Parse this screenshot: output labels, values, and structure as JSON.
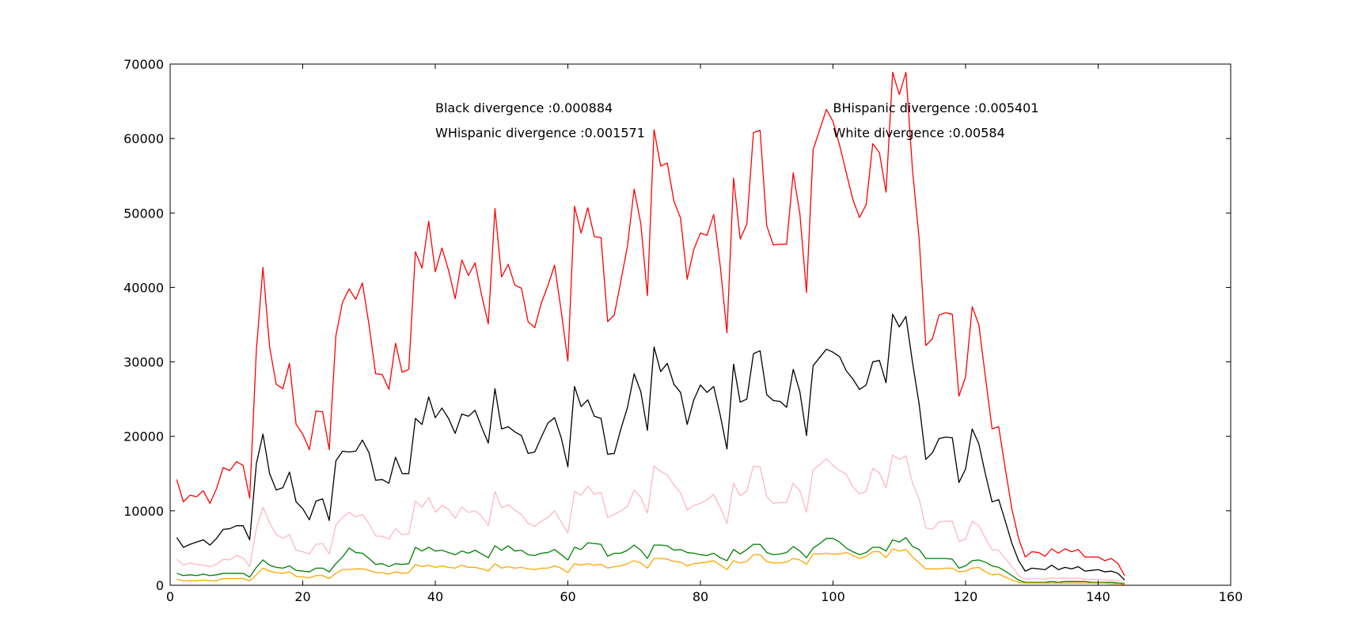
{
  "chart_data": {
    "type": "line",
    "title": "",
    "xlabel": "",
    "ylabel": "",
    "xlim": [
      0,
      160
    ],
    "ylim": [
      0,
      70000
    ],
    "xticks": [
      0,
      20,
      40,
      60,
      80,
      100,
      120,
      140,
      160
    ],
    "yticks": [
      0,
      10000,
      20000,
      30000,
      40000,
      50000,
      60000,
      70000
    ],
    "grid": false,
    "legend": "none",
    "annotations": [
      {
        "text": "Black divergence :0.000884",
        "x": 40,
        "y": 63500
      },
      {
        "text": "WHispanic divergence :0.001571",
        "x": 40,
        "y": 60200
      },
      {
        "text": "BHispanic divergence :0.005401",
        "x": 100,
        "y": 63500
      },
      {
        "text": "White divergence :0.00584",
        "x": 100,
        "y": 60200
      }
    ],
    "x": [
      1,
      2,
      3,
      4,
      5,
      6,
      7,
      8,
      9,
      10,
      11,
      12,
      13,
      14,
      15,
      16,
      17,
      18,
      19,
      20,
      21,
      22,
      23,
      24,
      25,
      26,
      27,
      28,
      29,
      30,
      31,
      32,
      33,
      34,
      35,
      36,
      37,
      38,
      39,
      40,
      41,
      42,
      43,
      44,
      45,
      46,
      47,
      48,
      49,
      50,
      51,
      52,
      53,
      54,
      55,
      56,
      57,
      58,
      59,
      60,
      61,
      62,
      63,
      64,
      65,
      66,
      67,
      68,
      69,
      70,
      71,
      72,
      73,
      74,
      75,
      76,
      77,
      78,
      79,
      80,
      81,
      82,
      83,
      84,
      85,
      86,
      87,
      88,
      89,
      90,
      91,
      92,
      93,
      94,
      95,
      96,
      97,
      98,
      99,
      100,
      101,
      102,
      103,
      104,
      105,
      106,
      107,
      108,
      109,
      110,
      111,
      112,
      113,
      114,
      115,
      116,
      117,
      118,
      119,
      120,
      121,
      122,
      123,
      124,
      125,
      126,
      127,
      128,
      129,
      130,
      131,
      132,
      133,
      134,
      135,
      136,
      137,
      138,
      139,
      140,
      141,
      142,
      143,
      144
    ],
    "series": [
      {
        "color": "#ff0000",
        "values": [
          14200,
          11200,
          12100,
          11900,
          12700,
          11000,
          13000,
          15800,
          15400,
          16600,
          16100,
          11700,
          31500,
          42700,
          32000,
          27000,
          26400,
          29800,
          21600,
          20300,
          18200,
          23400,
          23300,
          18200,
          33500,
          38000,
          39800,
          38400,
          40600,
          35000,
          28400,
          28300,
          26300,
          32500,
          28600,
          29000,
          44800,
          42600,
          48900,
          42100,
          45300,
          42300,
          38500,
          43700,
          41600,
          43300,
          38900,
          35100,
          50600,
          41400,
          43100,
          40300,
          39900,
          35400,
          34600,
          37900,
          40300,
          43000,
          36800,
          30100,
          50900,
          47300,
          50700,
          46800,
          46700,
          35400,
          36300,
          40900,
          45600,
          53200,
          48600,
          38900,
          61200,
          56300,
          56700,
          51600,
          49300,
          41100,
          45100,
          47300,
          47000,
          49800,
          42800,
          33900,
          54700,
          46500,
          48500,
          60800,
          61100,
          48300,
          45700,
          45800,
          45800,
          55400,
          49900,
          39300,
          58500,
          61200,
          63900,
          62300,
          59100,
          55400,
          51800,
          49400,
          51100,
          59300,
          58100,
          52800,
          68900,
          65900,
          68900,
          55700,
          46500,
          32200,
          33100,
          36300,
          36600,
          36400,
          25400,
          28000,
          37400,
          35000,
          27900,
          21000,
          21300,
          15600,
          10200,
          6300,
          3800,
          4500,
          4400,
          3900,
          4900,
          4300,
          4900,
          4500,
          4800,
          3800,
          3800,
          3800,
          3300,
          3600,
          2900,
          1300
        ]
      },
      {
        "color": "#000000",
        "values": [
          6400,
          5100,
          5500,
          5800,
          6100,
          5400,
          6300,
          7500,
          7600,
          8000,
          8000,
          6100,
          16300,
          20300,
          15000,
          12800,
          13100,
          15200,
          11200,
          10300,
          8800,
          11300,
          11600,
          8700,
          16700,
          18000,
          17900,
          18000,
          19500,
          17800,
          14100,
          14200,
          13700,
          17200,
          15000,
          15000,
          22400,
          21600,
          25300,
          22500,
          23800,
          22400,
          20400,
          23000,
          22700,
          23500,
          21200,
          19100,
          26400,
          21000,
          21300,
          20600,
          20100,
          17700,
          17900,
          19900,
          21800,
          22500,
          19800,
          15900,
          26700,
          24000,
          24900,
          22700,
          22400,
          17600,
          17700,
          21000,
          23900,
          28400,
          26000,
          20800,
          32000,
          28700,
          29800,
          27000,
          25900,
          21600,
          24900,
          26900,
          25900,
          26700,
          22800,
          18300,
          29700,
          24600,
          25000,
          31100,
          31500,
          25600,
          24800,
          24700,
          23900,
          29000,
          26000,
          20100,
          29500,
          30600,
          31700,
          31300,
          30700,
          28800,
          27700,
          26300,
          26900,
          30000,
          30200,
          27200,
          36400,
          34700,
          36100,
          29900,
          24300,
          16900,
          17800,
          19700,
          19900,
          19800,
          13800,
          15600,
          21000,
          19000,
          14900,
          11200,
          11500,
          8600,
          5600,
          3300,
          1900,
          2300,
          2200,
          2100,
          2700,
          2100,
          2400,
          2200,
          2500,
          1900,
          2000,
          2100,
          1800,
          1900,
          1600,
          700
        ]
      },
      {
        "color": "#ffb6c1",
        "values": [
          3500,
          2700,
          3000,
          2800,
          2700,
          2500,
          2800,
          3500,
          3400,
          4000,
          3700,
          2500,
          7600,
          10500,
          8400,
          6800,
          6300,
          6800,
          4700,
          4500,
          4200,
          5500,
          5600,
          4200,
          8100,
          9100,
          9800,
          9200,
          9500,
          8300,
          6600,
          6600,
          6200,
          7600,
          6800,
          6900,
          11300,
          10500,
          11800,
          9800,
          10700,
          10200,
          9000,
          10500,
          9800,
          10000,
          9300,
          8000,
          12600,
          10400,
          10800,
          10100,
          9500,
          8300,
          7900,
          8600,
          9100,
          10000,
          8500,
          7000,
          12600,
          12100,
          13300,
          12200,
          12500,
          9100,
          9500,
          10000,
          10600,
          12800,
          11800,
          9700,
          16000,
          15300,
          14800,
          13500,
          12400,
          10100,
          10700,
          11000,
          11500,
          12200,
          10400,
          8300,
          13700,
          12000,
          12700,
          16000,
          15900,
          11900,
          11000,
          11100,
          11100,
          13700,
          12700,
          9800,
          15500,
          16200,
          17000,
          16100,
          15400,
          14900,
          13200,
          12300,
          12600,
          15700,
          15100,
          13100,
          17500,
          16900,
          17400,
          13700,
          11600,
          7700,
          7500,
          8500,
          8600,
          8600,
          5900,
          6200,
          8600,
          8000,
          6300,
          4800,
          4700,
          3600,
          2500,
          1300,
          800,
          900,
          900,
          800,
          1000,
          900,
          1000,
          900,
          1000,
          800,
          800,
          800,
          700,
          700,
          600,
          300
        ]
      },
      {
        "color": "#008000",
        "values": [
          1600,
          1300,
          1400,
          1300,
          1500,
          1300,
          1400,
          1600,
          1600,
          1600,
          1600,
          1100,
          2400,
          3400,
          2700,
          2400,
          2300,
          2600,
          2000,
          1900,
          1800,
          2300,
          2300,
          1800,
          2900,
          3800,
          5000,
          4400,
          4300,
          3600,
          2800,
          2900,
          2500,
          2900,
          2800,
          2900,
          5100,
          4600,
          5100,
          4600,
          4700,
          4400,
          4100,
          4600,
          4300,
          4700,
          4200,
          3700,
          5300,
          4700,
          5300,
          4600,
          4700,
          4100,
          4000,
          4300,
          4400,
          4800,
          4100,
          3400,
          5100,
          4800,
          5700,
          5600,
          5500,
          3900,
          4300,
          4300,
          4700,
          5400,
          4700,
          3600,
          5400,
          5400,
          5300,
          4700,
          4800,
          4400,
          4300,
          4100,
          4000,
          4300,
          3700,
          3300,
          4800,
          4200,
          4800,
          5500,
          5500,
          4400,
          4100,
          4200,
          4400,
          5200,
          4600,
          3700,
          5000,
          5600,
          6300,
          6300,
          5800,
          5000,
          4500,
          4100,
          4400,
          5100,
          5100,
          4600,
          6100,
          5800,
          6400,
          5200,
          4800,
          3600,
          3600,
          3600,
          3600,
          3500,
          2300,
          2600,
          3300,
          3400,
          3100,
          2600,
          2400,
          1900,
          1300,
          700,
          400,
          400,
          400,
          400,
          500,
          400,
          500,
          500,
          500,
          500,
          400,
          400,
          400,
          400,
          300,
          200
        ]
      },
      {
        "color": "#ffa500",
        "values": [
          800,
          600,
          600,
          600,
          700,
          600,
          600,
          900,
          900,
          900,
          900,
          600,
          1400,
          2300,
          1900,
          1700,
          1600,
          1800,
          1200,
          1100,
          1000,
          1300,
          1300,
          900,
          1600,
          2100,
          2100,
          2200,
          2200,
          2000,
          1700,
          1700,
          1500,
          1800,
          1600,
          1700,
          2800,
          2500,
          2700,
          2400,
          2600,
          2400,
          2300,
          2700,
          2400,
          2400,
          2200,
          1900,
          2900,
          2300,
          2500,
          2300,
          2400,
          2200,
          2100,
          2300,
          2300,
          2600,
          2300,
          1700,
          2900,
          2700,
          2900,
          2700,
          2800,
          2300,
          2500,
          2600,
          2900,
          3300,
          3000,
          2300,
          3600,
          3600,
          3500,
          3200,
          3100,
          2600,
          2900,
          3000,
          3100,
          3300,
          2700,
          2100,
          3300,
          3000,
          3200,
          4100,
          4100,
          3200,
          3000,
          3000,
          3100,
          3600,
          3400,
          2800,
          4200,
          4200,
          4300,
          4200,
          4200,
          4400,
          4000,
          3600,
          3900,
          4500,
          4500,
          3700,
          4900,
          4600,
          4800,
          3800,
          3000,
          2200,
          2200,
          2200,
          2300,
          2300,
          1800,
          1900,
          2300,
          2400,
          1800,
          1400,
          1500,
          1100,
          700,
          400,
          300,
          300,
          300,
          300,
          300,
          300,
          300,
          300,
          300,
          300,
          300,
          300,
          300,
          200,
          200,
          100
        ]
      }
    ]
  }
}
